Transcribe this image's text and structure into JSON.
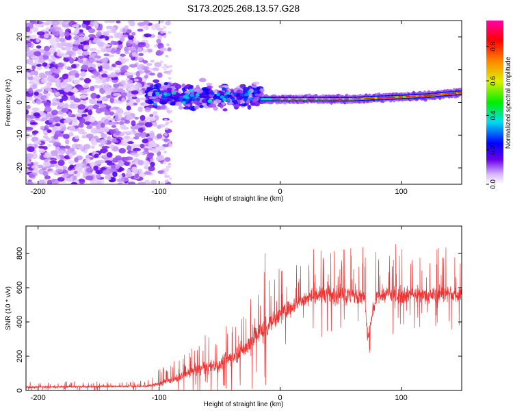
{
  "title": "S173.2025.268.13.57.G28",
  "chart_data": [
    {
      "type": "heatmap",
      "name": "spectrogram",
      "xlabel": "Height of straight line (km)",
      "ylabel": "Frequency (Hz)",
      "xlim": [
        -210,
        150
      ],
      "ylim": [
        -25,
        25
      ],
      "xticks": [
        -200,
        -100,
        0,
        100
      ],
      "yticks": [
        -20,
        -10,
        0,
        10,
        20
      ],
      "colorbar": {
        "label": "Normalized spectral amplitude",
        "range": [
          0,
          0.95
        ],
        "ticks": [
          0.0,
          0.2,
          0.4,
          0.6,
          0.8
        ]
      },
      "features": {
        "noise_region_x": [
          -210,
          -90
        ],
        "scatter_region_x": [
          -110,
          -15
        ],
        "carrier_start_x": -15,
        "carrier_freq_hz": [
          1,
          1,
          2,
          3
        ],
        "carrier_freq_at_x": [
          -15,
          60,
          120,
          150
        ],
        "peak_amplitude": 0.95
      }
    },
    {
      "type": "line",
      "name": "snr",
      "xlabel": "Height of straight line (km)",
      "ylabel": "SNR (10 * v/v)",
      "xlim": [
        -210,
        150
      ],
      "ylim": [
        0,
        960
      ],
      "xticks": [
        -200,
        -100,
        0,
        100
      ],
      "yticks": [
        0,
        200,
        400,
        600,
        800
      ],
      "series": [
        {
          "name": "SNR",
          "color": "#ee3333",
          "envelope_x": [
            -210,
            -110,
            -100,
            -85,
            -70,
            -50,
            -30,
            -15,
            0,
            15,
            30,
            50,
            70,
            72,
            80,
            100,
            130,
            150
          ],
          "envelope_mean": [
            20,
            25,
            40,
            70,
            120,
            150,
            240,
            350,
            440,
            520,
            560,
            560,
            540,
            300,
            560,
            560,
            560,
            560
          ],
          "envelope_spread": [
            10,
            10,
            30,
            40,
            60,
            80,
            110,
            140,
            100,
            80,
            90,
            110,
            100,
            60,
            90,
            90,
            90,
            90
          ],
          "max_value": 945
        }
      ]
    }
  ]
}
